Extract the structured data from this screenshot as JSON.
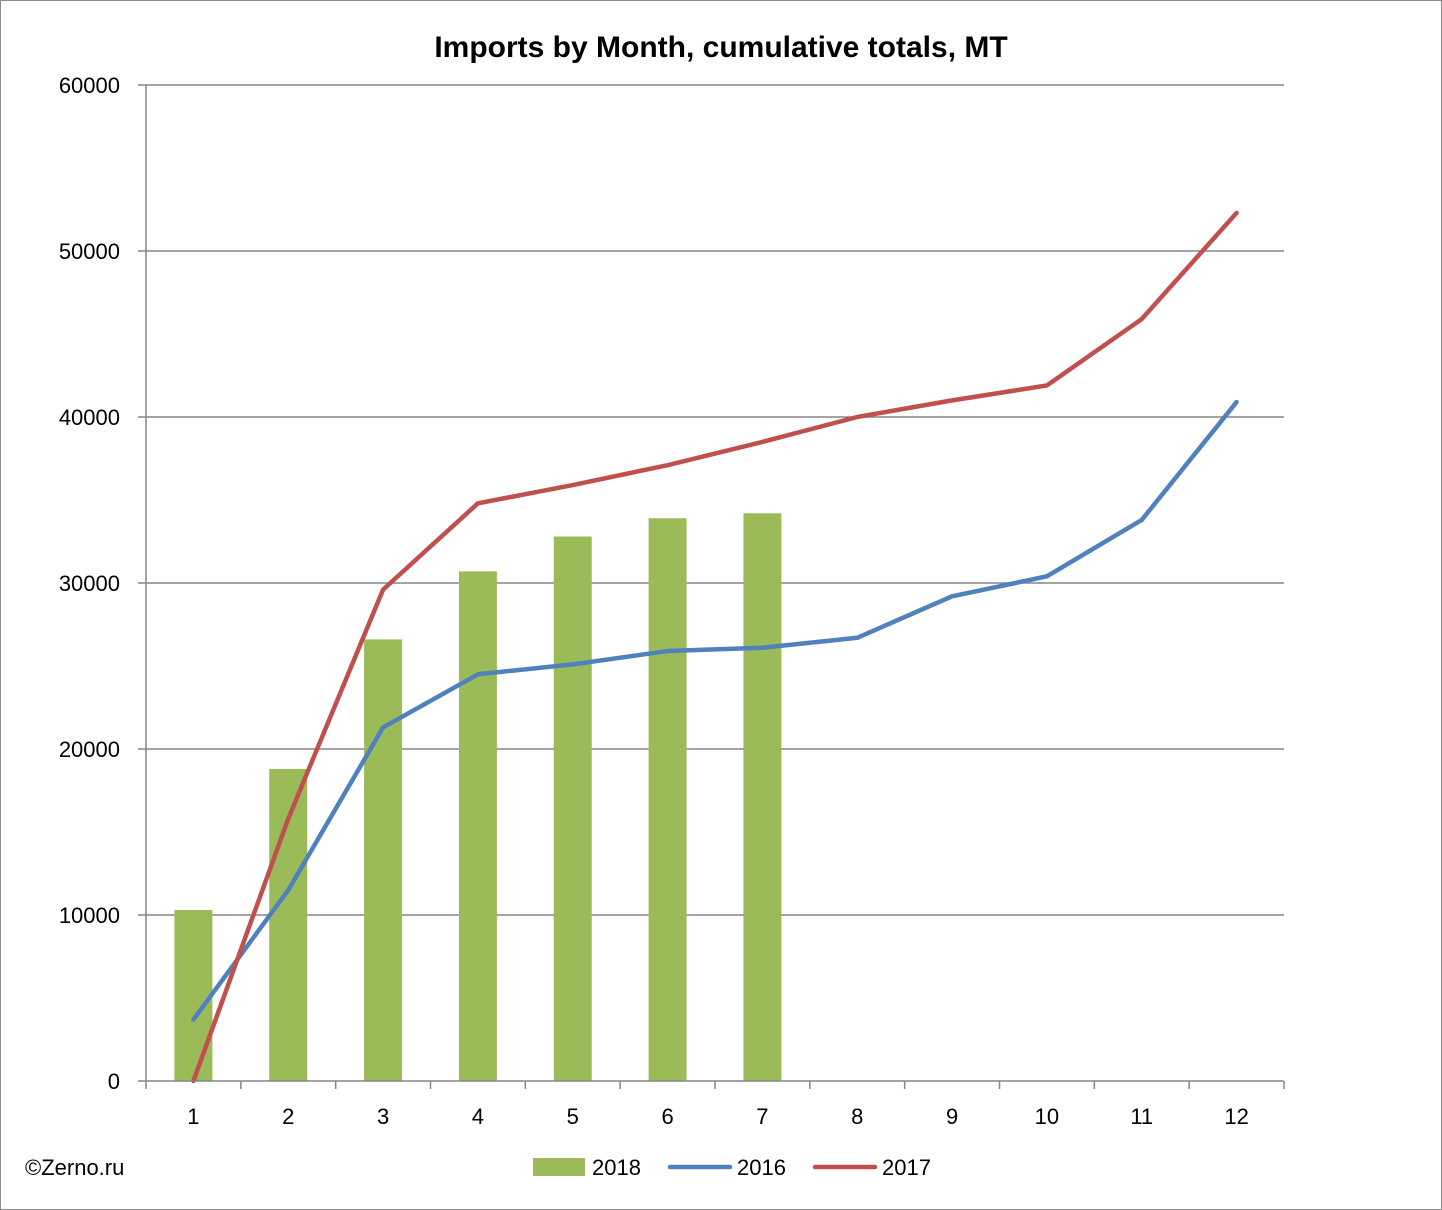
{
  "credit": "©Zerno.ru",
  "chart_data": {
    "type": "bar",
    "title": "Imports by Month, cumulative totals, MT",
    "xlabel": "",
    "ylabel": "",
    "categories": [
      "1",
      "2",
      "3",
      "4",
      "5",
      "6",
      "7",
      "8",
      "9",
      "10",
      "11",
      "12"
    ],
    "ylim": [
      0,
      60000
    ],
    "yticks": [
      0,
      10000,
      20000,
      30000,
      40000,
      50000,
      60000
    ],
    "ytick_labels": [
      "0",
      "10000",
      "20000",
      "30000",
      "40000",
      "50000",
      "60000"
    ],
    "grid": true,
    "legend_position": "bottom",
    "series": [
      {
        "name": "2018",
        "type": "bar",
        "color": "#9bbb59",
        "values": [
          10300,
          18800,
          26600,
          30700,
          32800,
          33900,
          34200,
          null,
          null,
          null,
          null,
          null
        ]
      },
      {
        "name": "2016",
        "type": "line",
        "color": "#4f81bd",
        "values": [
          3700,
          11500,
          21300,
          24500,
          25100,
          25900,
          26100,
          26700,
          29200,
          30400,
          33800,
          40900
        ]
      },
      {
        "name": "2017",
        "type": "line",
        "color": "#c0504d",
        "values": [
          0,
          15800,
          29600,
          34800,
          35900,
          37100,
          38500,
          40000,
          41000,
          41900,
          45900,
          52300
        ]
      }
    ]
  }
}
